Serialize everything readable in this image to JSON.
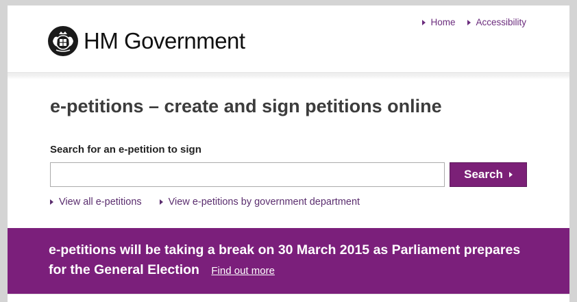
{
  "header": {
    "logo_text": "HM Government",
    "nav": [
      {
        "label": "Home"
      },
      {
        "label": "Accessibility"
      }
    ]
  },
  "main": {
    "title": "e-petitions – create and sign petitions online",
    "search": {
      "label": "Search for an e-petition to sign",
      "value": "",
      "placeholder": "",
      "button_label": "Search"
    },
    "links": [
      {
        "label": "View all e-petitions"
      },
      {
        "label": "View e-petitions by government department"
      }
    ]
  },
  "banner": {
    "text": "e-petitions will be taking a break on 30 March 2015 as Parliament prepares for the General Election",
    "link_label": "Find out more"
  },
  "colors": {
    "accent": "#7b1f7b",
    "link": "#6b2c7d"
  },
  "icons": [
    "royal-crest-icon",
    "triangle-right-icon"
  ]
}
